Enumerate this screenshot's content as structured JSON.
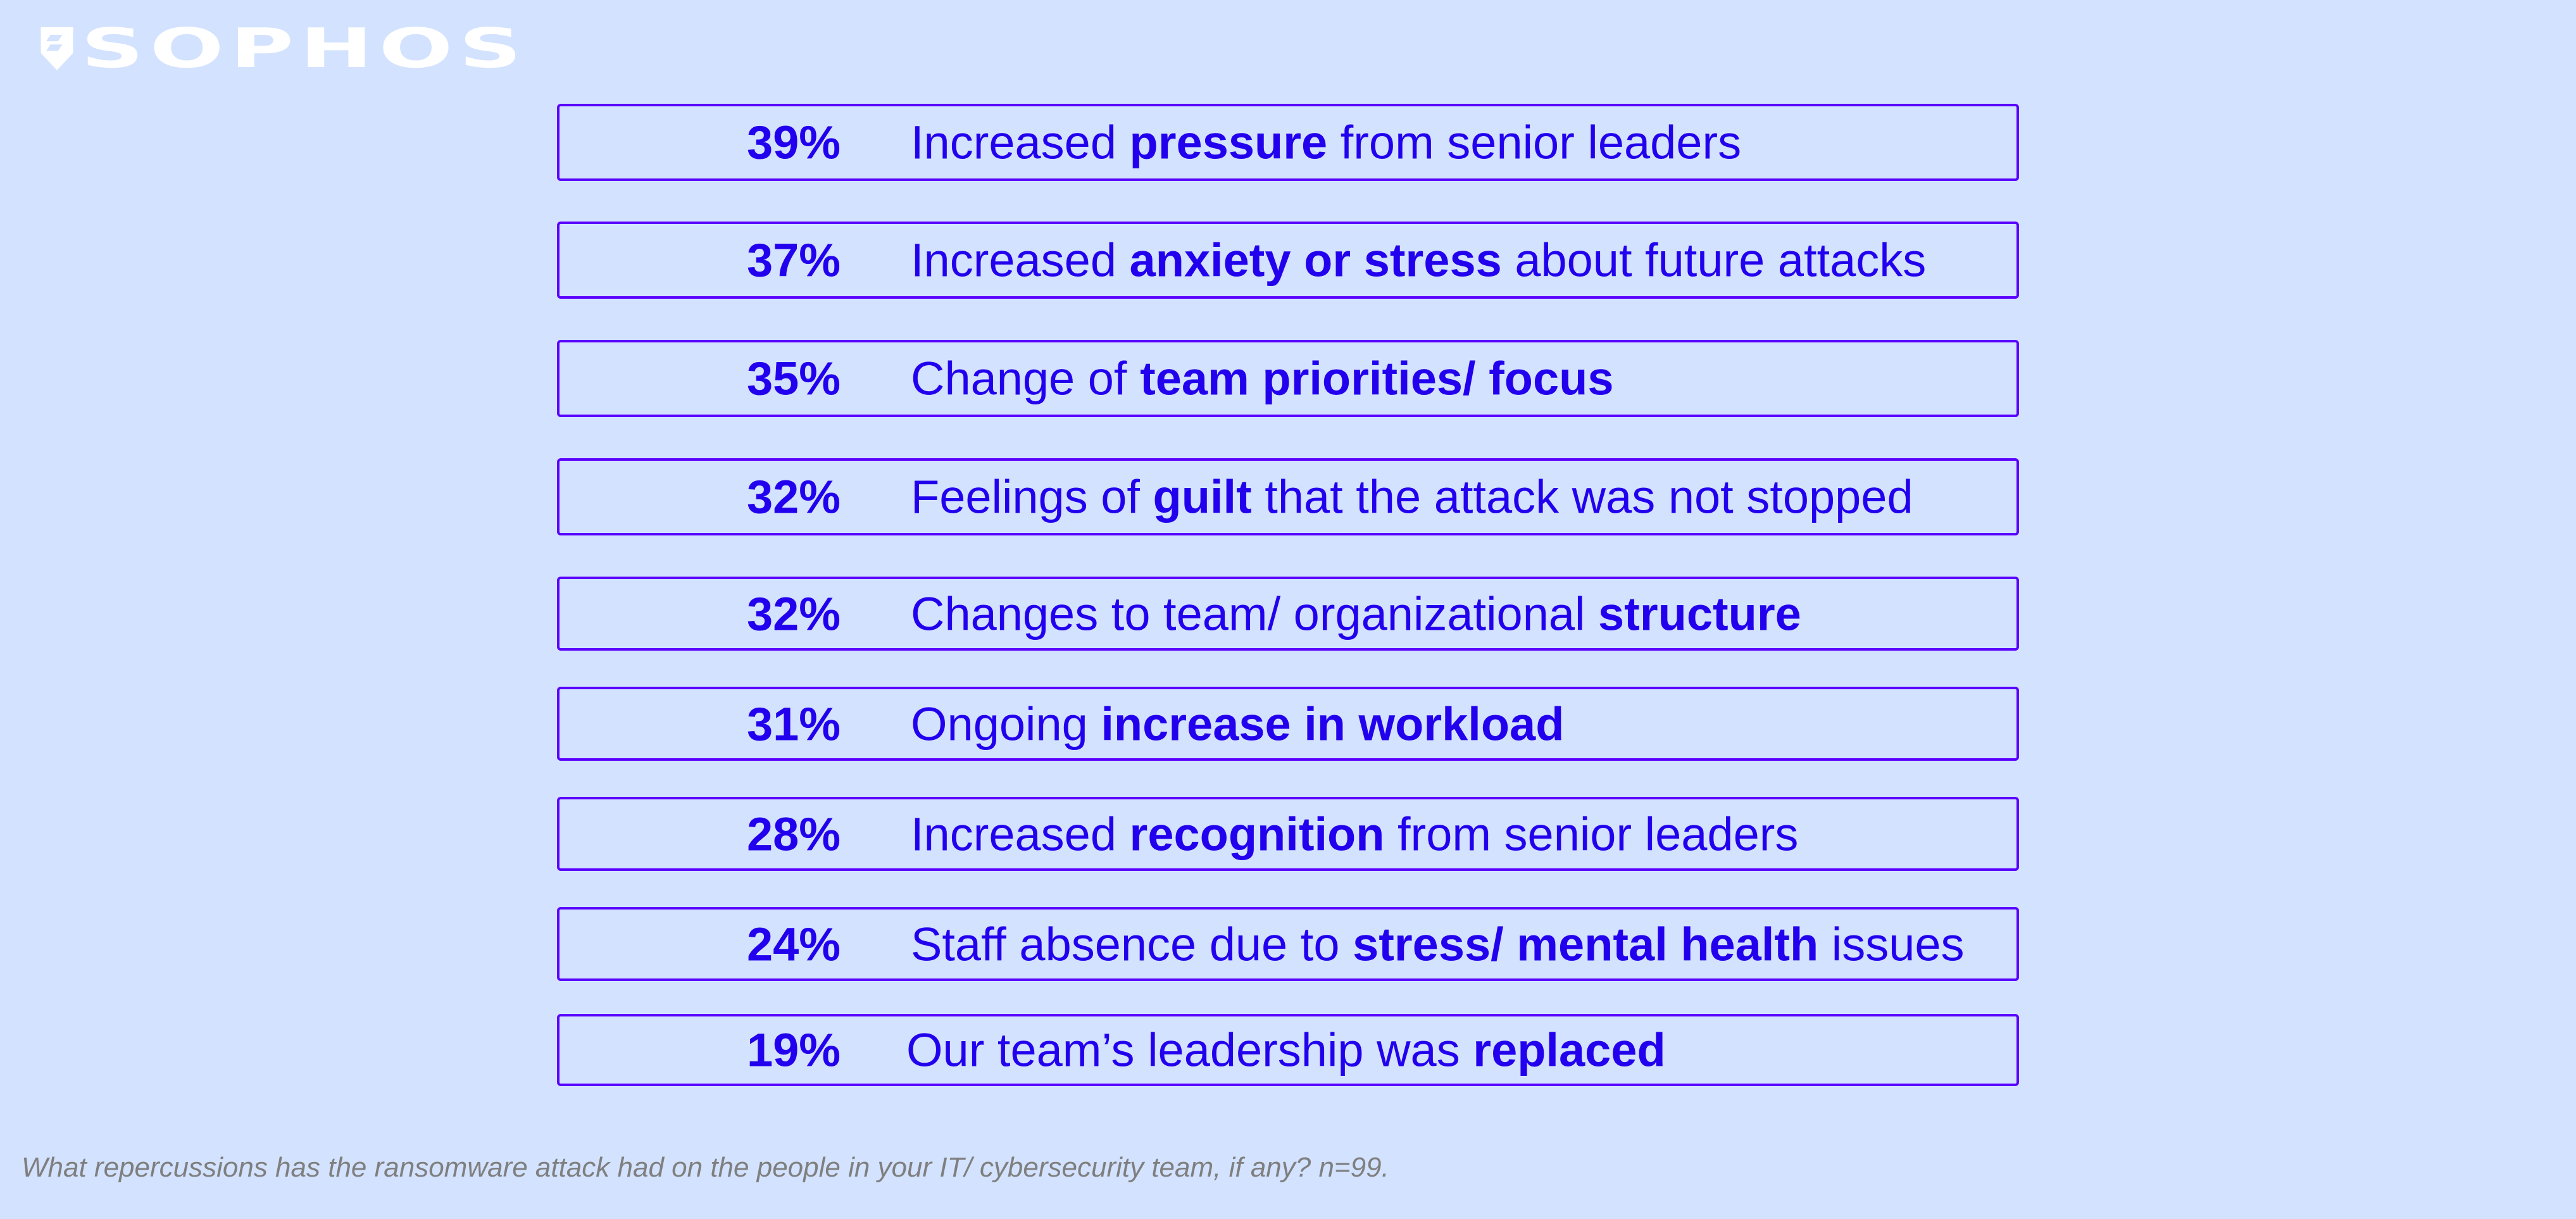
{
  "brand": {
    "logo_text": "SOPHOS",
    "logo_color": "#ffffff"
  },
  "colors": {
    "background": "#d3e2fe",
    "text": "#2200ee",
    "border": "#5a00ff",
    "footnote": "#7f7f7f"
  },
  "items": [
    {
      "percent": "39%",
      "parts": [
        {
          "text": "Increased ",
          "bold": false
        },
        {
          "text": "pressure",
          "bold": true
        },
        {
          "text": " from senior leaders",
          "bold": false
        }
      ]
    },
    {
      "percent": "37%",
      "parts": [
        {
          "text": "Increased ",
          "bold": false
        },
        {
          "text": "anxiety or stress",
          "bold": true
        },
        {
          "text": " about future attacks",
          "bold": false
        }
      ]
    },
    {
      "percent": "35%",
      "parts": [
        {
          "text": "Change of ",
          "bold": false
        },
        {
          "text": "team priorities/ focus",
          "bold": true
        }
      ]
    },
    {
      "percent": "32%",
      "parts": [
        {
          "text": "Feelings of ",
          "bold": false
        },
        {
          "text": "guilt",
          "bold": true
        },
        {
          "text": " that the attack was not stopped",
          "bold": false
        }
      ]
    },
    {
      "percent": "32%",
      "parts": [
        {
          "text": "Changes to team/ organizational ",
          "bold": false
        },
        {
          "text": "structure",
          "bold": true
        }
      ]
    },
    {
      "percent": "31%",
      "parts": [
        {
          "text": "Ongoing ",
          "bold": false
        },
        {
          "text": "increase in workload",
          "bold": true
        }
      ]
    },
    {
      "percent": "28%",
      "parts": [
        {
          "text": "Increased ",
          "bold": false
        },
        {
          "text": "recognition",
          "bold": true
        },
        {
          "text": " from senior leaders",
          "bold": false
        }
      ]
    },
    {
      "percent": "24%",
      "parts": [
        {
          "text": "Staff absence due to ",
          "bold": false
        },
        {
          "text": "stress/ mental health",
          "bold": true
        },
        {
          "text": " issues",
          "bold": false
        }
      ]
    },
    {
      "percent": "19%",
      "parts": [
        {
          "text": "Our team’s leadership was ",
          "bold": false
        },
        {
          "text": "replaced",
          "bold": true
        }
      ]
    }
  ],
  "footnote": "What repercussions has the ransomware attack had on the people in your IT/ cybersecurity team, if any? n=99."
}
